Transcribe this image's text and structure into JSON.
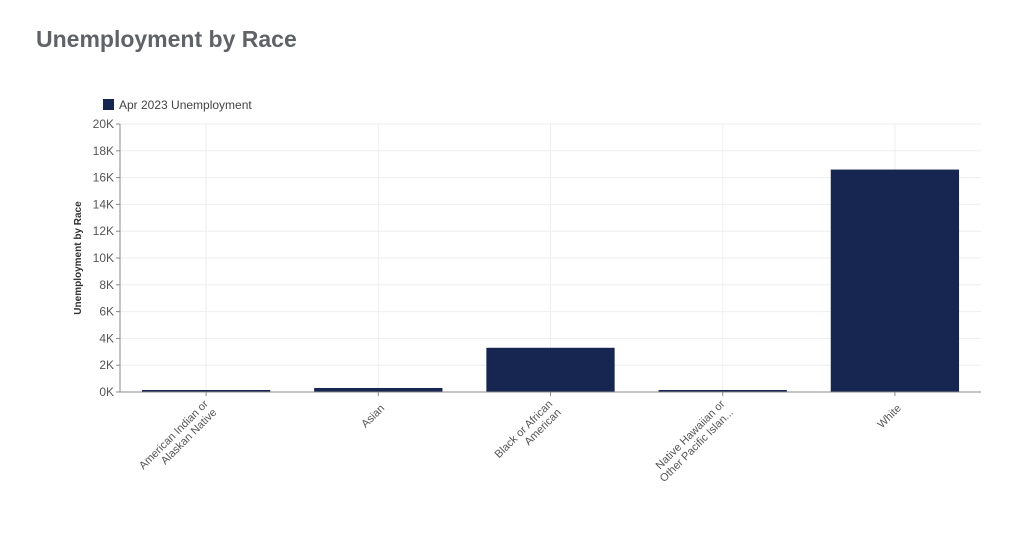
{
  "title": "Unemployment by Race",
  "chart_data": {
    "type": "bar",
    "title": "Unemployment by Race",
    "xlabel": "",
    "ylabel": "Unemployment by Race",
    "ylim": [
      0,
      20000
    ],
    "yticks": [
      {
        "value": 0,
        "label": "0K"
      },
      {
        "value": 2000,
        "label": "2K"
      },
      {
        "value": 4000,
        "label": "4K"
      },
      {
        "value": 6000,
        "label": "6K"
      },
      {
        "value": 8000,
        "label": "8K"
      },
      {
        "value": 10000,
        "label": "10K"
      },
      {
        "value": 12000,
        "label": "12K"
      },
      {
        "value": 14000,
        "label": "14K"
      },
      {
        "value": 16000,
        "label": "16K"
      },
      {
        "value": 18000,
        "label": "18K"
      },
      {
        "value": 20000,
        "label": "20K"
      }
    ],
    "categories": [
      [
        "American Indian or",
        "Alaskan Native"
      ],
      [
        "Asian"
      ],
      [
        "Black or African",
        "American"
      ],
      [
        "Native Hawaiian or",
        "Other Pacific Islan..."
      ],
      [
        "White"
      ]
    ],
    "series": [
      {
        "name": "Apr 2023 Unemployment",
        "color": "#172650",
        "values": [
          60,
          300,
          3300,
          60,
          16600
        ]
      }
    ],
    "grid": true,
    "legend_position": "top-left"
  }
}
